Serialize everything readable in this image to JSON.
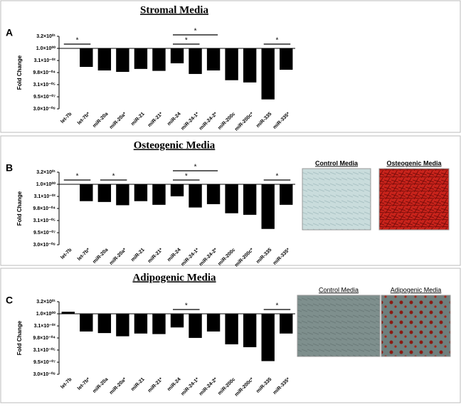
{
  "chart_data": [
    {
      "type": "bar",
      "panel": "A",
      "title": "Stromal Media",
      "y_label": "Fold Change",
      "log_scale": true,
      "color": "#000000",
      "categories": [
        "let-7b",
        "let-7b*",
        "miR-20a",
        "miR-20a*",
        "miR-21",
        "miR-21*",
        "miR-24",
        "miR-24-1*",
        "miR-24-2*",
        "miR-200c",
        "miR-200c*",
        "miR-335",
        "miR-335*"
      ],
      "values": [
        1.1,
        0.005,
        0.0018,
        0.0012,
        0.0028,
        0.0016,
        0.014,
        0.00066,
        0.0018,
        0.00011,
        5.8e-05,
        4.5e-07,
        0.0022
      ],
      "ylim": [
        3e-08,
        32
      ],
      "yticks": [
        {
          "value": 32,
          "label": "3.2×10⁰¹"
        },
        {
          "value": 1,
          "label": "1.0×10⁰⁰"
        },
        {
          "value": 0.031,
          "label": "3.1×10⁻⁰²"
        },
        {
          "value": 0.00098,
          "label": "9.8×10⁻⁰⁴"
        },
        {
          "value": 3.1e-05,
          "label": "3.1×10⁻⁰⁵"
        },
        {
          "value": 9.5e-07,
          "label": "9.5×10⁻⁰⁷"
        },
        {
          "value": 3e-08,
          "label": "3.0×10⁻⁰⁸"
        }
      ],
      "significance": [
        {
          "from": 0,
          "to": 1,
          "label": "*"
        },
        {
          "from": 6,
          "to": 7,
          "label": "*"
        },
        {
          "from": 6,
          "to": 8,
          "label": "*"
        },
        {
          "from": 11,
          "to": 12,
          "label": "*"
        }
      ]
    },
    {
      "type": "bar",
      "panel": "B",
      "title": "Osteogenic Media",
      "y_label": "Fold Change",
      "log_scale": true,
      "color": "#000000",
      "categories": [
        "let-7b",
        "let-7b*",
        "miR-20a",
        "miR-20a*",
        "miR-21",
        "miR-21*",
        "miR-24",
        "miR-24-1*",
        "miR-24-2*",
        "miR-200c",
        "miR-200c*",
        "miR-335",
        "miR-335*"
      ],
      "values": [
        1.1,
        0.008,
        0.0063,
        0.0025,
        0.008,
        0.0028,
        0.032,
        0.0013,
        0.0034,
        0.00025,
        0.00016,
        2.8e-06,
        0.0028
      ],
      "ylim": [
        3e-08,
        32
      ],
      "yticks": [
        {
          "value": 32,
          "label": "3.2×10⁰¹"
        },
        {
          "value": 1,
          "label": "1.0×10⁰⁰"
        },
        {
          "value": 0.031,
          "label": "3.1×10⁻⁰²"
        },
        {
          "value": 0.00098,
          "label": "9.8×10⁻⁰⁴"
        },
        {
          "value": 3.1e-05,
          "label": "3.1×10⁻⁰⁵"
        },
        {
          "value": 9.5e-07,
          "label": "9.5×10⁻⁰⁷"
        },
        {
          "value": 3e-08,
          "label": "3.0×10⁻⁰⁸"
        }
      ],
      "significance": [
        {
          "from": 0,
          "to": 1,
          "label": "*"
        },
        {
          "from": 2,
          "to": 3,
          "label": "*"
        },
        {
          "from": 6,
          "to": 7,
          "label": "*"
        },
        {
          "from": 6,
          "to": 8,
          "label": "*"
        },
        {
          "from": 11,
          "to": 12,
          "label": "*"
        }
      ],
      "micrographs": [
        "Control Media",
        "Osteogenic Media"
      ]
    },
    {
      "type": "bar",
      "panel": "C",
      "title": "Adipogenic Media",
      "y_label": "Fold Change",
      "log_scale": true,
      "color": "#000000",
      "categories": [
        "let-7b",
        "let-7b*",
        "miR-20a",
        "miR-20a*",
        "miR-21",
        "miR-21*",
        "miR-24",
        "miR-24-1*",
        "miR-24-2*",
        "miR-200c",
        "miR-200c*",
        "miR-335",
        "miR-335*"
      ],
      "values": [
        1.8,
        0.0063,
        0.004,
        0.0016,
        0.0035,
        0.003,
        0.02,
        0.001,
        0.0063,
        0.00016,
        7e-05,
        1.3e-06,
        0.0035
      ],
      "ylim": [
        3e-08,
        32
      ],
      "yticks": [
        {
          "value": 32,
          "label": "3.2×10⁰¹"
        },
        {
          "value": 1,
          "label": "1.0×10⁰⁰"
        },
        {
          "value": 0.031,
          "label": "3.1×10⁻⁰²"
        },
        {
          "value": 0.00098,
          "label": "9.8×10⁻⁰⁴"
        },
        {
          "value": 3.1e-05,
          "label": "3.1×10⁻⁰⁵"
        },
        {
          "value": 9.5e-07,
          "label": "9.5×10⁻⁰⁷"
        },
        {
          "value": 3e-08,
          "label": "3.0×10⁻⁰⁸"
        }
      ],
      "significance": [
        {
          "from": 6,
          "to": 7,
          "label": "*"
        },
        {
          "from": 11,
          "to": 12,
          "label": "*"
        }
      ],
      "micrographs": [
        "Control Media",
        "Adipogenic Media"
      ]
    }
  ]
}
